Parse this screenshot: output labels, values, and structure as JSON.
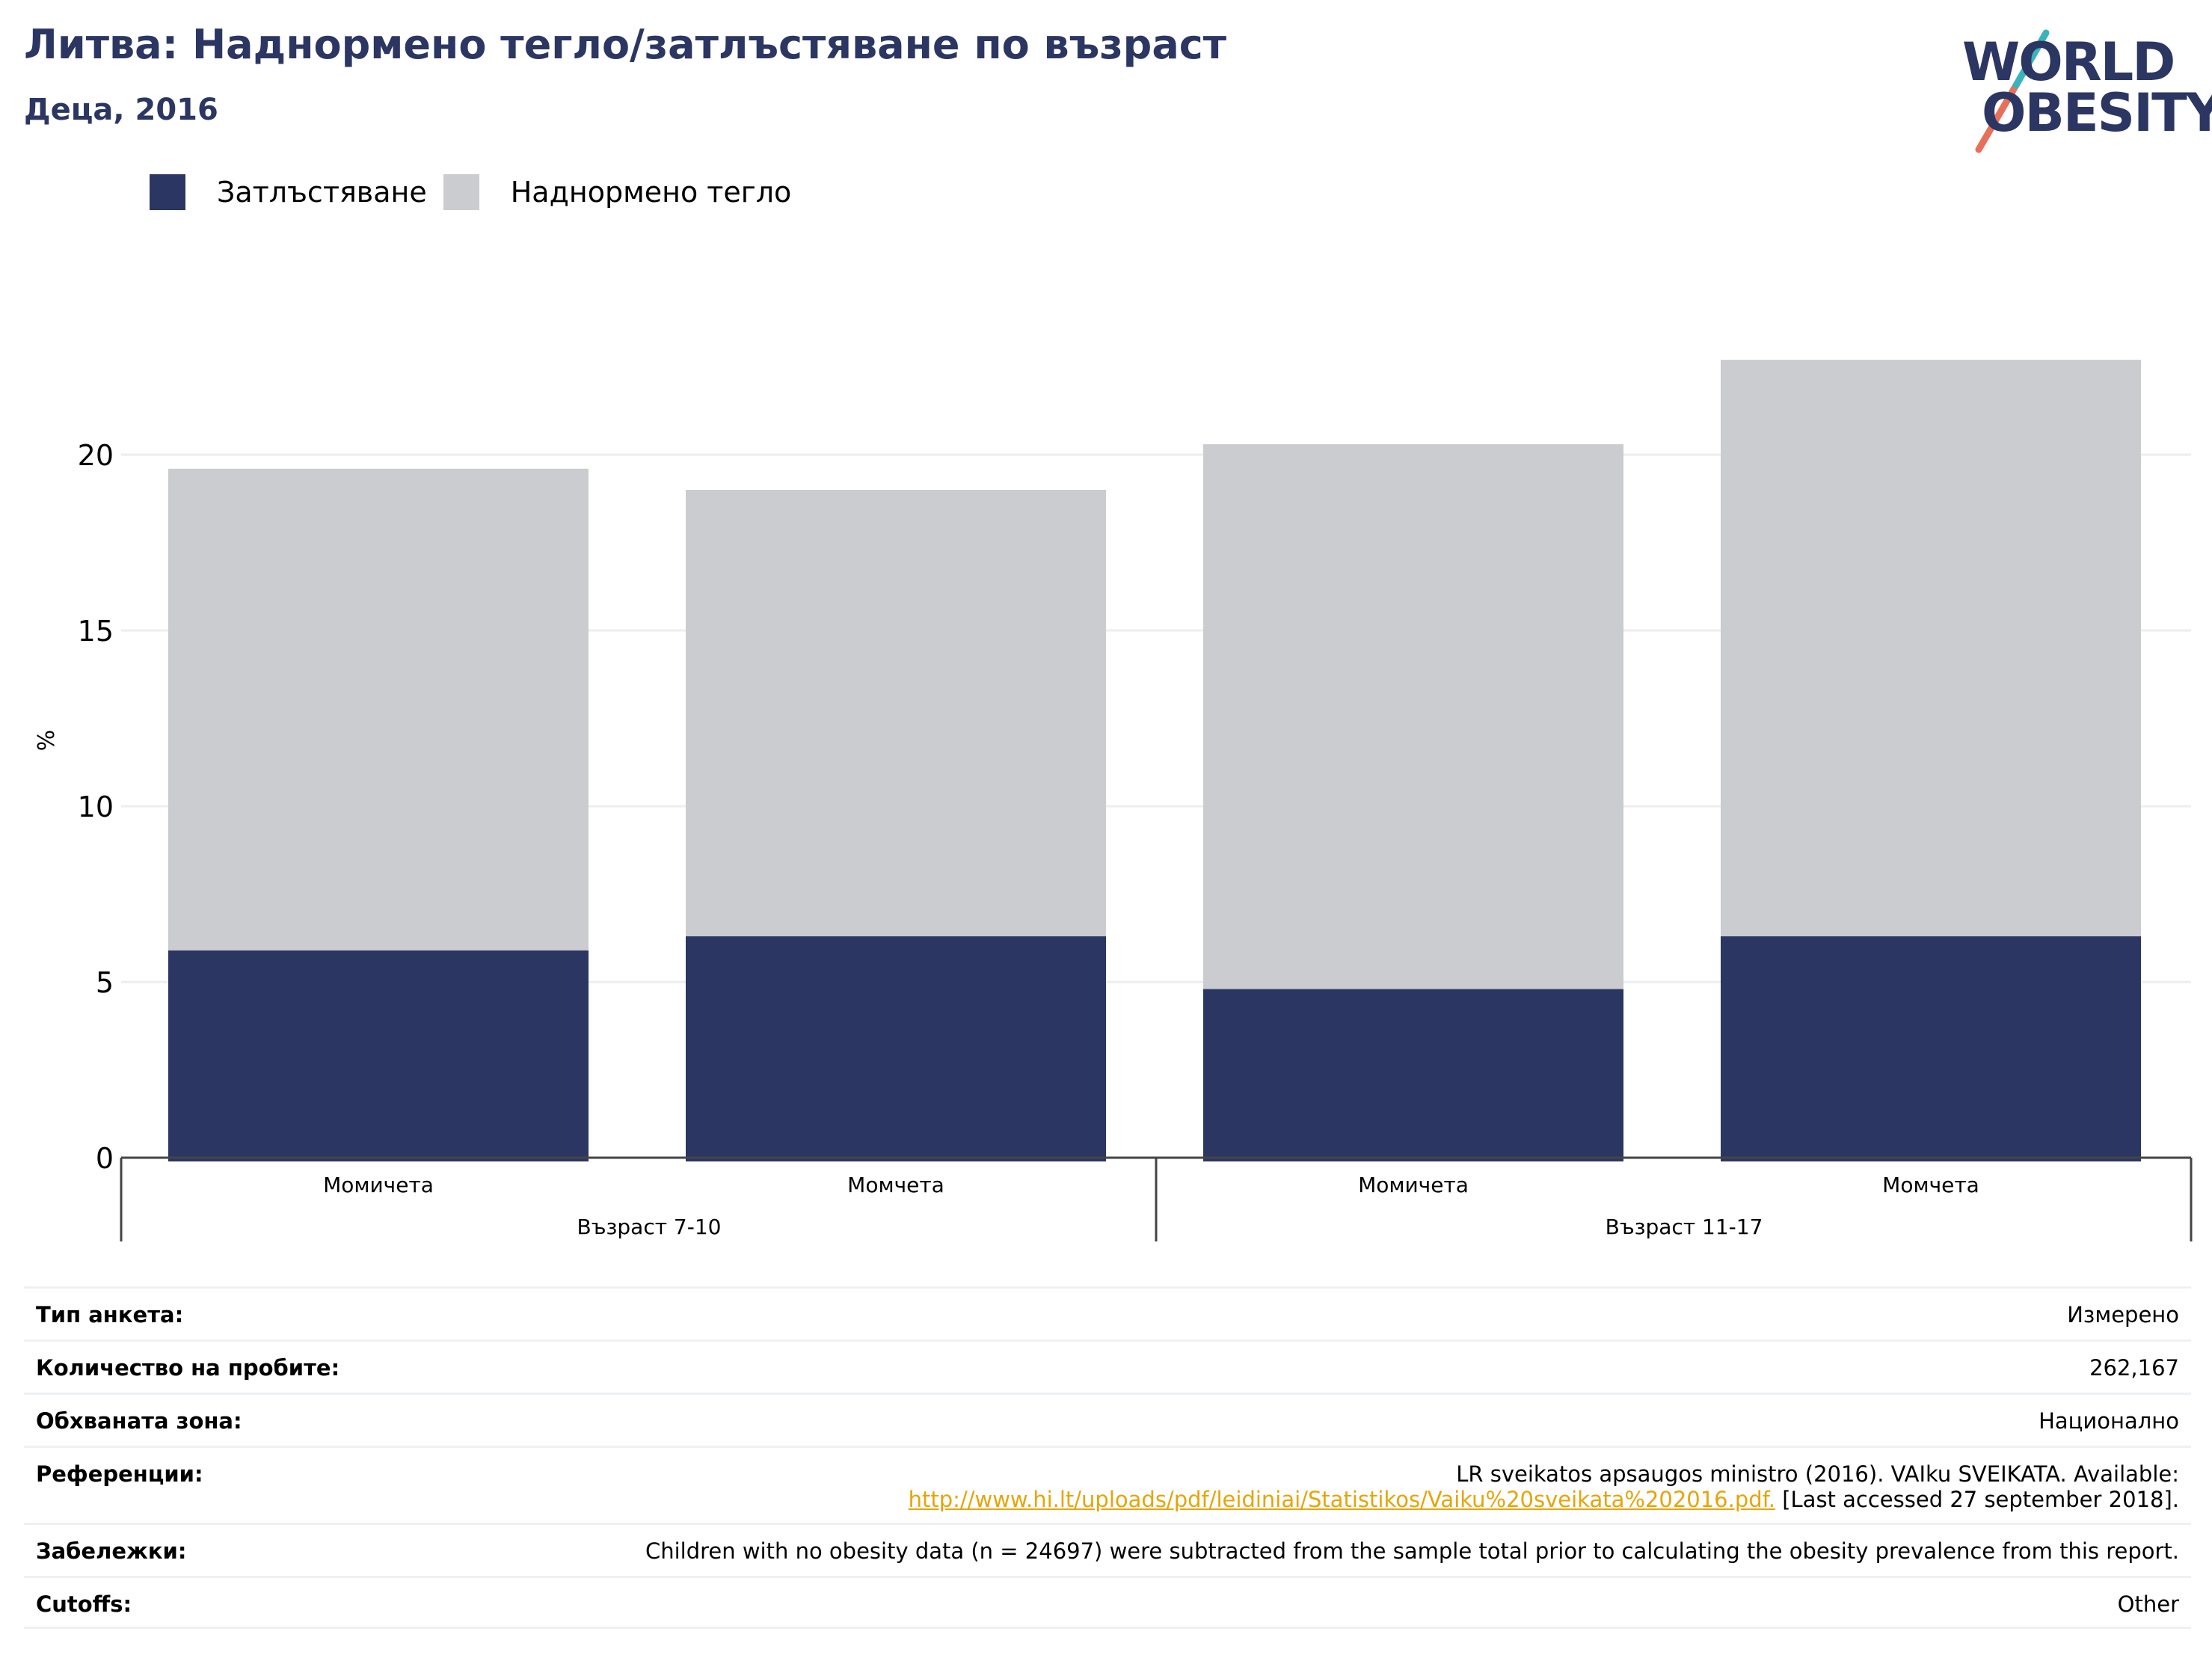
{
  "header": {
    "title": "Литва: Наднормено тегло/затлъстяване по възраст",
    "subtitle": "Деца, 2016"
  },
  "logo": {
    "line1": "WORLD",
    "line2": "OBESITY"
  },
  "colors": {
    "obesity": "#2b3663",
    "overweight": "#cacccf",
    "title": "#2b3663",
    "link": "#e5a50a"
  },
  "chart_data": {
    "type": "bar",
    "stacked": true,
    "title": "Литва: Наднормено тегло/затлъстяване по възраст",
    "subtitle": "Деца, 2016",
    "ylabel": "%",
    "ylim": [
      0,
      22.8
    ],
    "yticks": [
      0,
      5,
      10,
      15,
      20
    ],
    "grid": true,
    "legend_position": "top-left",
    "categories": [
      "Момичета",
      "Момчета",
      "Момичета",
      "Момчета"
    ],
    "groups": [
      {
        "label": "Възраст 7-10",
        "span": [
          0,
          1
        ]
      },
      {
        "label": "Възраст 11-17",
        "span": [
          2,
          3
        ]
      }
    ],
    "series": [
      {
        "name": "Затлъстяване",
        "values": [
          5.9,
          6.3,
          4.8,
          6.3
        ]
      },
      {
        "name": "Наднормено тегло",
        "values": [
          13.7,
          12.7,
          15.5,
          16.4
        ]
      }
    ]
  },
  "info": {
    "survey_type": {
      "label": "Тип анкета:",
      "value": "Измерено"
    },
    "sample_size": {
      "label": "Количество на пробите:",
      "value": "262,167"
    },
    "area": {
      "label": "Обхваната зона:",
      "value": "Национално"
    },
    "references": {
      "label": "Референции:",
      "line1": "LR sveikatos apsaugos ministro (2016). VAIku SVEIKATA. Available:",
      "link": "http://www.hi.lt/uploads/pdf/leidiniai/Statistikos/Vaiku%20sveikata%202016.pdf.",
      "suffix": " [Last accessed 27 september 2018]."
    },
    "notes": {
      "label": "Забележки:",
      "value": "Children with no obesity data (n = 24697) were subtracted from the sample total prior to calculating the obesity prevalence from this report."
    },
    "cutoffs": {
      "label": "Cutoffs:",
      "value": "Other"
    }
  }
}
